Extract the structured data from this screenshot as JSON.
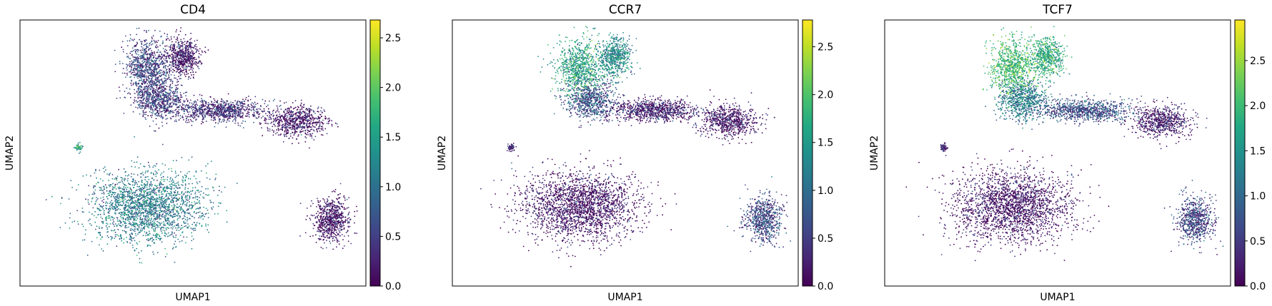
{
  "chart_data": [
    {
      "type": "scatter",
      "title": "CD4",
      "xlabel": "UMAP1",
      "ylabel": "UMAP2",
      "colorbar": {
        "ticks": [
          0.0,
          0.5,
          1.0,
          1.5,
          2.0,
          2.5
        ],
        "tick_labels": [
          "0.0",
          "0.5",
          "1.0",
          "1.5",
          "2.0",
          "2.5"
        ],
        "vmin": 0.0,
        "vmax": 2.68
      },
      "grid": false,
      "colormap": "viridis",
      "clusters": [
        {
          "name": "upper-left-a",
          "x": 0.37,
          "y": 0.82,
          "level": 0.55
        },
        {
          "name": "upper-left-b",
          "x": 0.47,
          "y": 0.86,
          "level": 0.15
        },
        {
          "name": "upper-mid",
          "x": 0.4,
          "y": 0.7,
          "level": 0.45
        },
        {
          "name": "upper-band",
          "x": 0.58,
          "y": 0.66,
          "level": 0.35
        },
        {
          "name": "upper-right",
          "x": 0.8,
          "y": 0.62,
          "level": 0.1
        },
        {
          "name": "lower-left",
          "x": 0.37,
          "y": 0.3,
          "level": 1.1
        },
        {
          "name": "lower-right",
          "x": 0.9,
          "y": 0.25,
          "level": 0.1
        },
        {
          "name": "small-island",
          "x": 0.17,
          "y": 0.52,
          "level": 1.5
        }
      ]
    },
    {
      "type": "scatter",
      "title": "CCR7",
      "xlabel": "UMAP1",
      "ylabel": "UMAP2",
      "colorbar": {
        "ticks": [
          0.0,
          0.5,
          1.0,
          1.5,
          2.0,
          2.5
        ],
        "tick_labels": [
          "0.0",
          "0.5",
          "1.0",
          "1.5",
          "2.0",
          "2.5"
        ],
        "vmin": 0.0,
        "vmax": 2.78
      },
      "grid": false,
      "colormap": "viridis",
      "clusters": [
        {
          "name": "upper-left-a",
          "x": 0.37,
          "y": 0.82,
          "level": 1.6
        },
        {
          "name": "upper-left-b",
          "x": 0.47,
          "y": 0.86,
          "level": 1.3
        },
        {
          "name": "upper-mid",
          "x": 0.4,
          "y": 0.7,
          "level": 0.7
        },
        {
          "name": "upper-band",
          "x": 0.58,
          "y": 0.66,
          "level": 0.2
        },
        {
          "name": "upper-right",
          "x": 0.8,
          "y": 0.62,
          "level": 0.1
        },
        {
          "name": "lower-left",
          "x": 0.37,
          "y": 0.3,
          "level": 0.1
        },
        {
          "name": "lower-right",
          "x": 0.9,
          "y": 0.25,
          "level": 0.6
        },
        {
          "name": "small-island",
          "x": 0.17,
          "y": 0.52,
          "level": 0.2
        }
      ]
    },
    {
      "type": "scatter",
      "title": "TCF7",
      "xlabel": "UMAP1",
      "ylabel": "UMAP2",
      "colorbar": {
        "ticks": [
          0.0,
          0.5,
          1.0,
          1.5,
          2.0,
          2.5
        ],
        "tick_labels": [
          "0.0",
          "0.5",
          "1.0",
          "1.5",
          "2.0",
          "2.5"
        ],
        "vmin": 0.0,
        "vmax": 2.95
      },
      "grid": false,
      "colormap": "viridis",
      "clusters": [
        {
          "name": "upper-left-a",
          "x": 0.37,
          "y": 0.82,
          "level": 2.0
        },
        {
          "name": "upper-left-b",
          "x": 0.47,
          "y": 0.86,
          "level": 1.8
        },
        {
          "name": "upper-mid",
          "x": 0.4,
          "y": 0.7,
          "level": 1.2
        },
        {
          "name": "upper-band",
          "x": 0.58,
          "y": 0.66,
          "level": 0.7
        },
        {
          "name": "upper-right",
          "x": 0.8,
          "y": 0.62,
          "level": 0.2
        },
        {
          "name": "lower-left",
          "x": 0.37,
          "y": 0.3,
          "level": 0.1
        },
        {
          "name": "lower-right",
          "x": 0.9,
          "y": 0.25,
          "level": 0.6
        },
        {
          "name": "small-island",
          "x": 0.17,
          "y": 0.52,
          "level": 0.2
        }
      ]
    }
  ]
}
